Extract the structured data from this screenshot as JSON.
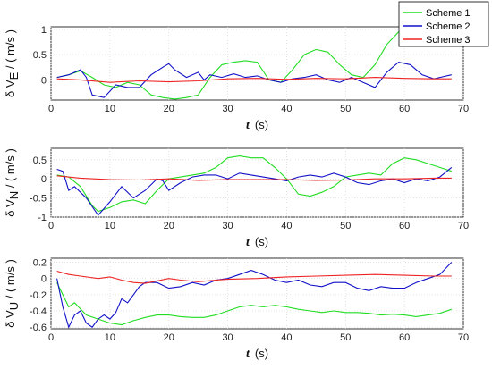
{
  "legend": {
    "entries": [
      {
        "label": "Scheme 1",
        "color": "#22dd22"
      },
      {
        "label": "Scheme 2",
        "color": "#1010c8"
      },
      {
        "label": "Scheme 3",
        "color": "#ee2222"
      }
    ],
    "placement": "top-right"
  },
  "chart_data": [
    {
      "type": "line",
      "ylabel_prefix": "δ V",
      "ylabel_sub": "E",
      "ylabel_unit": " / ( m/s )",
      "xlabel_var": "t",
      "xlabel_unit": "(s)",
      "xlim": [
        0,
        70
      ],
      "ylim": [
        -0.4,
        1.05
      ],
      "xticks": [
        "0",
        "10",
        "20",
        "30",
        "40",
        "50",
        "60",
        "70"
      ],
      "yticks": [
        {
          "v": 1,
          "t": "1"
        },
        {
          "v": 0.5,
          "t": "0.5"
        },
        {
          "v": 0,
          "t": "0"
        }
      ],
      "grid": true,
      "series": [
        {
          "name": "Scheme 1",
          "color": "#22dd22",
          "x": [
            1,
            3,
            5,
            7,
            9,
            11,
            13,
            15,
            17,
            19,
            21,
            23,
            25,
            27,
            29,
            31,
            33,
            35,
            37,
            39,
            41,
            43,
            45,
            47,
            49,
            51,
            53,
            55,
            57,
            59,
            61,
            63,
            65,
            67,
            68
          ],
          "y": [
            0.05,
            0.1,
            0.18,
            0.05,
            -0.1,
            -0.15,
            -0.05,
            -0.1,
            -0.3,
            -0.35,
            -0.38,
            -0.35,
            -0.3,
            0.05,
            0.3,
            0.35,
            0.38,
            0.35,
            0,
            -0.05,
            0.2,
            0.5,
            0.6,
            0.55,
            0.3,
            0.1,
            0.05,
            0.3,
            0.7,
            0.95,
            1.0,
            1.02,
            0.95,
            0.8,
            0.75
          ]
        },
        {
          "name": "Scheme 2",
          "color": "#1010c8",
          "x": [
            1,
            3,
            5,
            6,
            7,
            9,
            11,
            13,
            15,
            17,
            19,
            20,
            21,
            23,
            25,
            26,
            27,
            29,
            31,
            33,
            35,
            37,
            39,
            41,
            43,
            45,
            47,
            49,
            51,
            53,
            55,
            57,
            59,
            61,
            63,
            65,
            66,
            68
          ],
          "y": [
            0.05,
            0.1,
            0.2,
            0.05,
            -0.3,
            -0.35,
            -0.1,
            -0.15,
            -0.15,
            0.1,
            0.25,
            0.32,
            0.2,
            0.05,
            0.15,
            0.0,
            0.1,
            0.05,
            0.12,
            0.05,
            0.08,
            0.0,
            -0.05,
            0.02,
            0.05,
            0.1,
            0.0,
            -0.05,
            0.05,
            -0.05,
            -0.15,
            0.15,
            0.35,
            0.3,
            0.1,
            0.02,
            0.05,
            0.1
          ]
        },
        {
          "name": "Scheme 3",
          "color": "#ee2222",
          "x": [
            1,
            5,
            10,
            15,
            20,
            25,
            30,
            35,
            40,
            45,
            50,
            55,
            60,
            65,
            68
          ],
          "y": [
            0.02,
            0.0,
            -0.05,
            -0.02,
            -0.04,
            -0.02,
            0.02,
            0.03,
            0.01,
            0.03,
            0.02,
            0.05,
            0.03,
            0.02,
            0.02
          ]
        }
      ]
    },
    {
      "type": "line",
      "ylabel_prefix": "δ V",
      "ylabel_sub": "N",
      "ylabel_unit": " / ( m/s )",
      "xlabel_var": "t",
      "xlabel_unit": "(s)",
      "xlim": [
        0,
        70
      ],
      "ylim": [
        -1,
        0.8
      ],
      "xticks": [
        "0",
        "10",
        "20",
        "30",
        "40",
        "50",
        "60",
        "70"
      ],
      "yticks": [
        {
          "v": 0.5,
          "t": "0.5"
        },
        {
          "v": 0,
          "t": "0"
        },
        {
          "v": -0.5,
          "t": "-0.5"
        },
        {
          "v": -1,
          "t": "-1"
        }
      ],
      "grid": true,
      "series": [
        {
          "name": "Scheme 1",
          "color": "#22dd22",
          "x": [
            1,
            3,
            5,
            7,
            8,
            10,
            12,
            14,
            16,
            18,
            20,
            22,
            24,
            26,
            28,
            30,
            32,
            34,
            36,
            38,
            40,
            42,
            44,
            46,
            48,
            50,
            52,
            54,
            56,
            58,
            60,
            62,
            64,
            66,
            68
          ],
          "y": [
            0.1,
            0.05,
            -0.2,
            -0.7,
            -0.85,
            -0.75,
            -0.6,
            -0.55,
            -0.65,
            -0.3,
            0.0,
            0.05,
            0.1,
            0.15,
            0.3,
            0.55,
            0.6,
            0.55,
            0.55,
            0.3,
            0.0,
            -0.4,
            -0.45,
            -0.35,
            -0.2,
            0.05,
            0.1,
            0.15,
            0.1,
            0.4,
            0.55,
            0.5,
            0.4,
            0.3,
            0.2
          ]
        },
        {
          "name": "Scheme 2",
          "color": "#1010c8",
          "x": [
            1,
            2,
            3,
            4,
            6,
            8,
            10,
            12,
            14,
            15,
            16,
            18,
            19,
            20,
            22,
            24,
            26,
            28,
            30,
            32,
            34,
            36,
            38,
            40,
            42,
            44,
            46,
            48,
            50,
            52,
            54,
            56,
            58,
            60,
            62,
            64,
            66,
            68
          ],
          "y": [
            0.25,
            0.2,
            -0.3,
            -0.2,
            -0.5,
            -0.95,
            -0.6,
            -0.2,
            -0.5,
            -0.4,
            -0.3,
            0.0,
            -0.05,
            -0.3,
            -0.1,
            0.05,
            0.1,
            0.1,
            0.0,
            0.15,
            0.1,
            0.05,
            0.0,
            -0.05,
            0.05,
            0.1,
            0.05,
            0.15,
            0.05,
            -0.1,
            -0.15,
            -0.05,
            0.0,
            -0.1,
            0.0,
            -0.05,
            0.05,
            0.3
          ]
        },
        {
          "name": "Scheme 3",
          "color": "#ee2222",
          "x": [
            1,
            5,
            10,
            15,
            20,
            25,
            30,
            35,
            40,
            45,
            50,
            55,
            60,
            65,
            68
          ],
          "y": [
            0.08,
            0.02,
            -0.02,
            -0.03,
            0.0,
            -0.04,
            -0.02,
            -0.02,
            -0.02,
            -0.04,
            -0.03,
            0.0,
            0.0,
            0.02,
            0.02
          ]
        }
      ]
    },
    {
      "type": "line",
      "ylabel_prefix": "δ V",
      "ylabel_sub": "U",
      "ylabel_unit": " / ( m/s )",
      "xlabel_var": "t",
      "xlabel_unit": "(s)",
      "xlim": [
        0,
        70
      ],
      "ylim": [
        -0.62,
        0.25
      ],
      "xticks": [
        "0",
        "10",
        "20",
        "30",
        "40",
        "50",
        "60",
        "70"
      ],
      "yticks": [
        {
          "v": 0.2,
          "t": "0.2"
        },
        {
          "v": 0,
          "t": "0"
        },
        {
          "v": -0.2,
          "t": "-0.2"
        },
        {
          "v": -0.4,
          "t": "-0.4"
        },
        {
          "v": -0.6,
          "t": "-0.6"
        }
      ],
      "grid": true,
      "series": [
        {
          "name": "Scheme 1",
          "color": "#22dd22",
          "x": [
            1,
            2,
            3,
            4,
            6,
            8,
            10,
            12,
            14,
            16,
            18,
            20,
            22,
            24,
            26,
            28,
            30,
            32,
            34,
            36,
            38,
            40,
            42,
            44,
            46,
            48,
            50,
            52,
            54,
            56,
            58,
            60,
            62,
            64,
            66,
            68
          ],
          "y": [
            -0.05,
            -0.2,
            -0.35,
            -0.3,
            -0.45,
            -0.5,
            -0.55,
            -0.57,
            -0.52,
            -0.48,
            -0.45,
            -0.45,
            -0.47,
            -0.48,
            -0.48,
            -0.45,
            -0.4,
            -0.35,
            -0.33,
            -0.35,
            -0.33,
            -0.35,
            -0.38,
            -0.4,
            -0.42,
            -0.4,
            -0.42,
            -0.42,
            -0.43,
            -0.45,
            -0.44,
            -0.45,
            -0.47,
            -0.45,
            -0.43,
            -0.38
          ]
        },
        {
          "name": "Scheme 2",
          "color": "#1010c8",
          "x": [
            1,
            2,
            3,
            4,
            5,
            6,
            7,
            8,
            9,
            10,
            11,
            12,
            13,
            14,
            15,
            16,
            18,
            20,
            22,
            24,
            26,
            28,
            30,
            32,
            34,
            36,
            38,
            40,
            42,
            44,
            46,
            48,
            50,
            52,
            54,
            56,
            58,
            60,
            62,
            64,
            66,
            68
          ],
          "y": [
            0.0,
            -0.35,
            -0.6,
            -0.45,
            -0.4,
            -0.55,
            -0.6,
            -0.5,
            -0.45,
            -0.5,
            -0.42,
            -0.25,
            -0.3,
            -0.2,
            -0.1,
            -0.05,
            -0.05,
            -0.12,
            -0.1,
            -0.05,
            -0.08,
            -0.02,
            0.0,
            0.05,
            0.1,
            0.05,
            -0.02,
            -0.05,
            -0.02,
            -0.08,
            -0.1,
            -0.05,
            -0.05,
            -0.12,
            -0.15,
            -0.1,
            -0.12,
            -0.12,
            -0.05,
            0.0,
            0.05,
            0.2
          ]
        },
        {
          "name": "Scheme 3",
          "color": "#ee2222",
          "x": [
            1,
            3,
            5,
            8,
            10,
            12,
            14,
            16,
            18,
            20,
            22,
            25,
            28,
            30,
            35,
            40,
            45,
            50,
            55,
            60,
            65,
            68
          ],
          "y": [
            0.09,
            0.05,
            0.03,
            0.0,
            0.02,
            -0.02,
            -0.05,
            -0.06,
            -0.03,
            0.0,
            -0.02,
            -0.04,
            -0.02,
            -0.01,
            0.0,
            0.02,
            0.03,
            0.04,
            0.05,
            0.04,
            0.03,
            0.03
          ]
        }
      ]
    }
  ]
}
